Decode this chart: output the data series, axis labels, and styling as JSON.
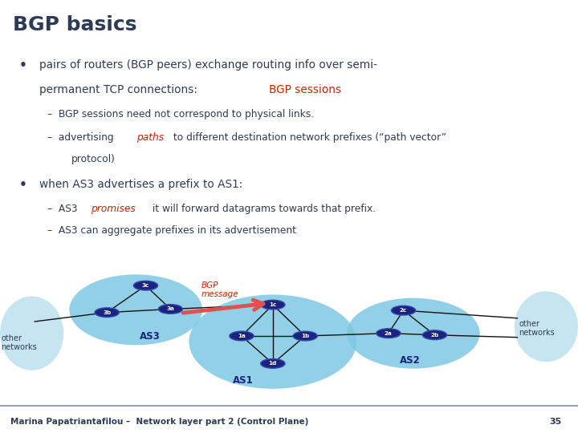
{
  "title": "BGP basics",
  "title_color": "#2E3B55",
  "title_fontsize": 18,
  "bg_color": "#FFFFFF",
  "content_box_color": "#D6E8F5",
  "footer_text": "Marina Papatriantafilou –  Network layer part 2 (Control Plane)",
  "footer_page": "35",
  "title_bg": "#EAECF2",
  "divider_color": "#7B8DB0",
  "text_color": "#2E3B55",
  "red_color": "#CC2200",
  "as_blob_color": "#7EC8E3",
  "other_net_blob_color": "#A8D8EA",
  "router_color": "#1A237E",
  "router_border": "#3949AB",
  "link_color": "#111111",
  "bgp_arrow_color": "#E05050",
  "bgp_text_color": "#CC2200"
}
